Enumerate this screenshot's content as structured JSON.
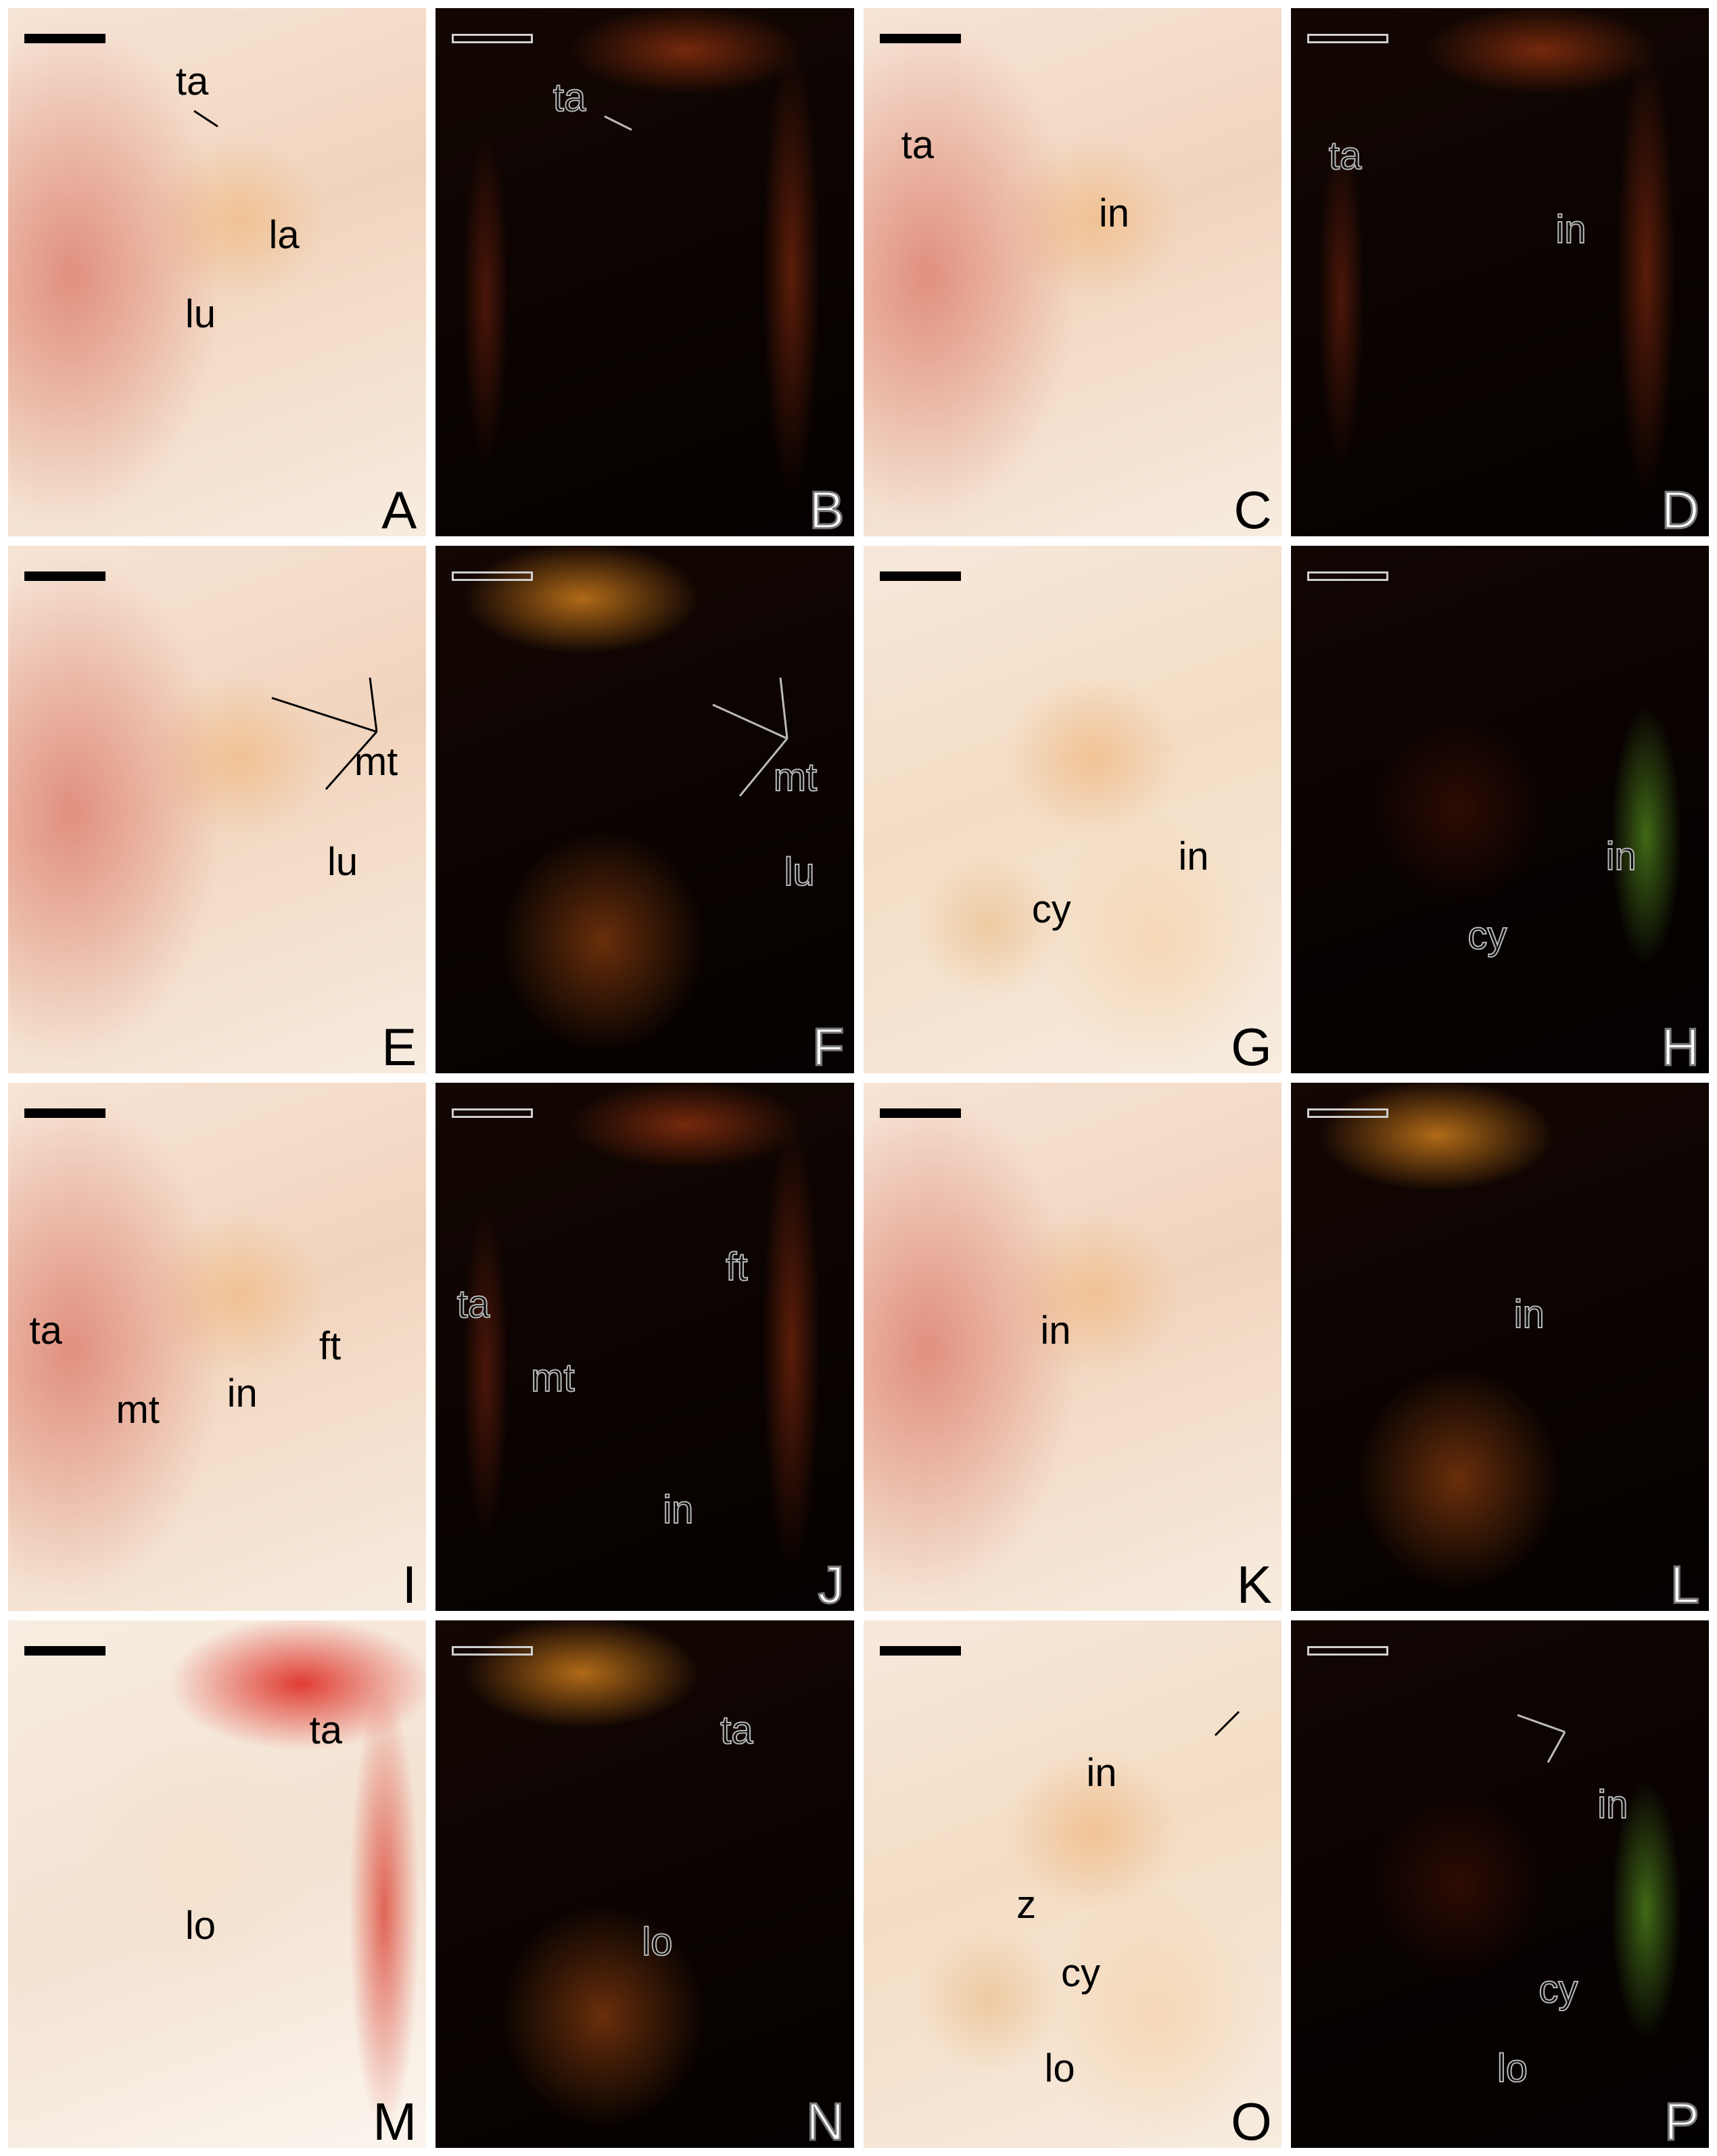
{
  "panels": [
    {
      "letter": "A",
      "bg": "bright",
      "labels": [
        "ta",
        "la",
        "lu"
      ]
    },
    {
      "letter": "B",
      "bg": "dark",
      "labels": [
        "ta"
      ]
    },
    {
      "letter": "C",
      "bg": "bright",
      "labels": [
        "ta",
        "in"
      ]
    },
    {
      "letter": "D",
      "bg": "dark",
      "labels": [
        "ta",
        "in"
      ]
    },
    {
      "letter": "E",
      "bg": "bright",
      "labels": [
        "mt",
        "lu"
      ]
    },
    {
      "letter": "F",
      "bg": "dark",
      "labels": [
        "mt",
        "lu"
      ]
    },
    {
      "letter": "G",
      "bg": "bright",
      "labels": [
        "in",
        "cy"
      ]
    },
    {
      "letter": "H",
      "bg": "dark",
      "labels": [
        "in",
        "cy"
      ]
    },
    {
      "letter": "I",
      "bg": "bright",
      "labels": [
        "ta",
        "mt",
        "in",
        "ft"
      ]
    },
    {
      "letter": "J",
      "bg": "dark",
      "labels": [
        "ta",
        "mt",
        "ft",
        "in"
      ]
    },
    {
      "letter": "K",
      "bg": "bright",
      "labels": [
        "in"
      ]
    },
    {
      "letter": "L",
      "bg": "dark",
      "labels": [
        "in"
      ]
    },
    {
      "letter": "M",
      "bg": "bright",
      "labels": [
        "ta",
        "lo"
      ]
    },
    {
      "letter": "N",
      "bg": "dark",
      "labels": [
        "ta",
        "lo"
      ]
    },
    {
      "letter": "O",
      "bg": "bright",
      "labels": [
        "in",
        "z",
        "cy",
        "lo"
      ]
    },
    {
      "letter": "P",
      "bg": "dark",
      "labels": [
        "in",
        "cy",
        "lo"
      ]
    }
  ]
}
